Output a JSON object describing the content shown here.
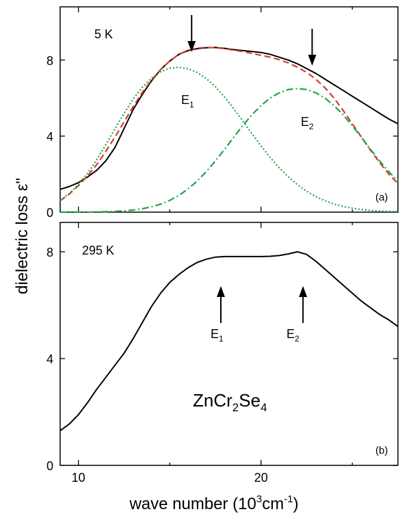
{
  "chart_data": [
    {
      "type": "line",
      "panel_label": "(a)",
      "temperature_label": "5 K",
      "xlim": [
        9,
        27.5
      ],
      "ylim": [
        0,
        10.8
      ],
      "yticks": [
        0,
        4,
        8
      ],
      "xticks": [
        10,
        20
      ],
      "xticklabels_visible": false,
      "colors": {
        "measured": "#000000",
        "fit": "#d63b2f",
        "components": "#1aa34a"
      },
      "series": [
        {
          "key": "measured",
          "style": "solid",
          "x": [
            9,
            9.5,
            10,
            10.5,
            11,
            11.5,
            12,
            12.5,
            13,
            13.5,
            14,
            14.5,
            15,
            15.5,
            16,
            16.5,
            17,
            17.5,
            18,
            18.5,
            19,
            19.5,
            20,
            20.5,
            21,
            21.5,
            22,
            22.5,
            23,
            23.5,
            24,
            24.5,
            25,
            25.5,
            26,
            26.5,
            27,
            27.5
          ],
          "y": [
            1.2,
            1.35,
            1.55,
            1.85,
            2.2,
            2.7,
            3.4,
            4.4,
            5.4,
            6.2,
            6.9,
            7.5,
            7.95,
            8.3,
            8.5,
            8.6,
            8.65,
            8.66,
            8.62,
            8.55,
            8.5,
            8.45,
            8.4,
            8.3,
            8.15,
            8.0,
            7.8,
            7.55,
            7.3,
            7.0,
            6.7,
            6.4,
            6.1,
            5.8,
            5.5,
            5.2,
            4.9,
            4.65
          ]
        },
        {
          "key": "fit",
          "style": "dashed",
          "x": [
            9,
            9.5,
            10,
            10.5,
            11,
            11.5,
            12,
            12.5,
            13,
            13.5,
            14,
            14.5,
            15,
            15.5,
            16,
            16.5,
            17,
            17.5,
            18,
            18.5,
            19,
            19.5,
            20,
            20.5,
            21,
            21.5,
            22,
            22.5,
            23,
            23.5,
            24,
            24.5,
            25,
            25.5,
            26,
            26.5,
            27,
            27.5
          ],
          "y": [
            0.6,
            0.95,
            1.4,
            1.9,
            2.5,
            3.2,
            3.95,
            4.75,
            5.55,
            6.3,
            6.95,
            7.5,
            7.95,
            8.3,
            8.52,
            8.63,
            8.67,
            8.65,
            8.6,
            8.52,
            8.45,
            8.35,
            8.25,
            8.15,
            8.02,
            7.85,
            7.62,
            7.35,
            7.0,
            6.55,
            6.0,
            5.35,
            4.65,
            3.95,
            3.25,
            2.6,
            2.0,
            1.5
          ]
        },
        {
          "key": "E1",
          "label": "E",
          "subscript": "1",
          "style": "dotted",
          "x": [
            9,
            9.5,
            10,
            10.5,
            11,
            11.5,
            12,
            12.5,
            13,
            13.5,
            14,
            14.5,
            15,
            15.5,
            16,
            16.5,
            17,
            17.5,
            18,
            18.5,
            19,
            19.5,
            20,
            20.5,
            21,
            21.5,
            22,
            22.5,
            23,
            23.5,
            24,
            24.5,
            25,
            25.5,
            26,
            26.5,
            27,
            27.5
          ],
          "y": [
            0.62,
            0.98,
            1.45,
            2.04,
            2.75,
            3.55,
            4.38,
            5.2,
            5.95,
            6.57,
            7.05,
            7.38,
            7.57,
            7.62,
            7.55,
            7.35,
            7.03,
            6.6,
            6.06,
            5.45,
            4.8,
            4.13,
            3.49,
            2.88,
            2.33,
            1.85,
            1.44,
            1.1,
            0.82,
            0.6,
            0.43,
            0.3,
            0.21,
            0.14,
            0.09,
            0.06,
            0.04,
            0.02
          ]
        },
        {
          "key": "E2",
          "label": "E",
          "subscript": "2",
          "style": "dashdot",
          "x": [
            9,
            9.5,
            10,
            10.5,
            11,
            11.5,
            12,
            12.5,
            13,
            13.5,
            14,
            14.5,
            15,
            15.5,
            16,
            16.5,
            17,
            17.5,
            18,
            18.5,
            19,
            19.5,
            20,
            20.5,
            21,
            21.5,
            22,
            22.5,
            23,
            23.5,
            24,
            24.5,
            25,
            25.5,
            26,
            26.5,
            27,
            27.5
          ],
          "y": [
            0.0,
            0.0,
            0.0,
            0.0,
            0.01,
            0.02,
            0.04,
            0.07,
            0.11,
            0.18,
            0.28,
            0.42,
            0.62,
            0.88,
            1.22,
            1.63,
            2.13,
            2.69,
            3.3,
            3.93,
            4.55,
            5.12,
            5.61,
            6.0,
            6.28,
            6.45,
            6.5,
            6.45,
            6.28,
            6.0,
            5.61,
            5.12,
            4.55,
            3.93,
            3.3,
            2.69,
            2.13,
            1.63
          ]
        }
      ],
      "arrows_at_x": [
        16.2,
        22.8
      ]
    },
    {
      "type": "line",
      "panel_label": "(b)",
      "temperature_label": "295 K",
      "xlim": [
        9,
        27.5
      ],
      "ylim": [
        0,
        9.1
      ],
      "yticks": [
        0,
        4,
        8
      ],
      "xticks": [
        10,
        20
      ],
      "xticklabels": [
        "10",
        "20"
      ],
      "series": [
        {
          "key": "measured",
          "style": "solid",
          "x": [
            9,
            9.5,
            10,
            10.5,
            11,
            11.5,
            12,
            12.5,
            13,
            13.5,
            14,
            14.5,
            15,
            15.5,
            16,
            16.5,
            17,
            17.5,
            18,
            18.5,
            19,
            19.5,
            20,
            20.5,
            21,
            21.5,
            22,
            22.5,
            23,
            23.5,
            24,
            24.5,
            25,
            25.5,
            26,
            26.5,
            27,
            27.5
          ],
          "y": [
            1.3,
            1.55,
            1.9,
            2.35,
            2.85,
            3.3,
            3.75,
            4.2,
            4.75,
            5.35,
            5.95,
            6.45,
            6.85,
            7.15,
            7.4,
            7.6,
            7.72,
            7.8,
            7.82,
            7.82,
            7.82,
            7.82,
            7.82,
            7.83,
            7.86,
            7.92,
            8.0,
            7.9,
            7.65,
            7.35,
            7.05,
            6.75,
            6.45,
            6.15,
            5.9,
            5.65,
            5.45,
            5.2
          ]
        }
      ],
      "arrows_at_x": [
        17.8,
        22.3
      ],
      "arrow_labels": [
        {
          "label": "E",
          "subscript": "1"
        },
        {
          "label": "E",
          "subscript": "2"
        }
      ],
      "compound": {
        "parts": [
          "ZnCr",
          "2",
          "Se",
          "4"
        ]
      }
    }
  ],
  "axes": {
    "ylabel": "dielectric loss ε\"",
    "xlabel_main": "wave number (10",
    "xlabel_sup": "3",
    "xlabel_unit": "cm",
    "xlabel_sup2": "-1",
    "xlabel_end": ")"
  }
}
